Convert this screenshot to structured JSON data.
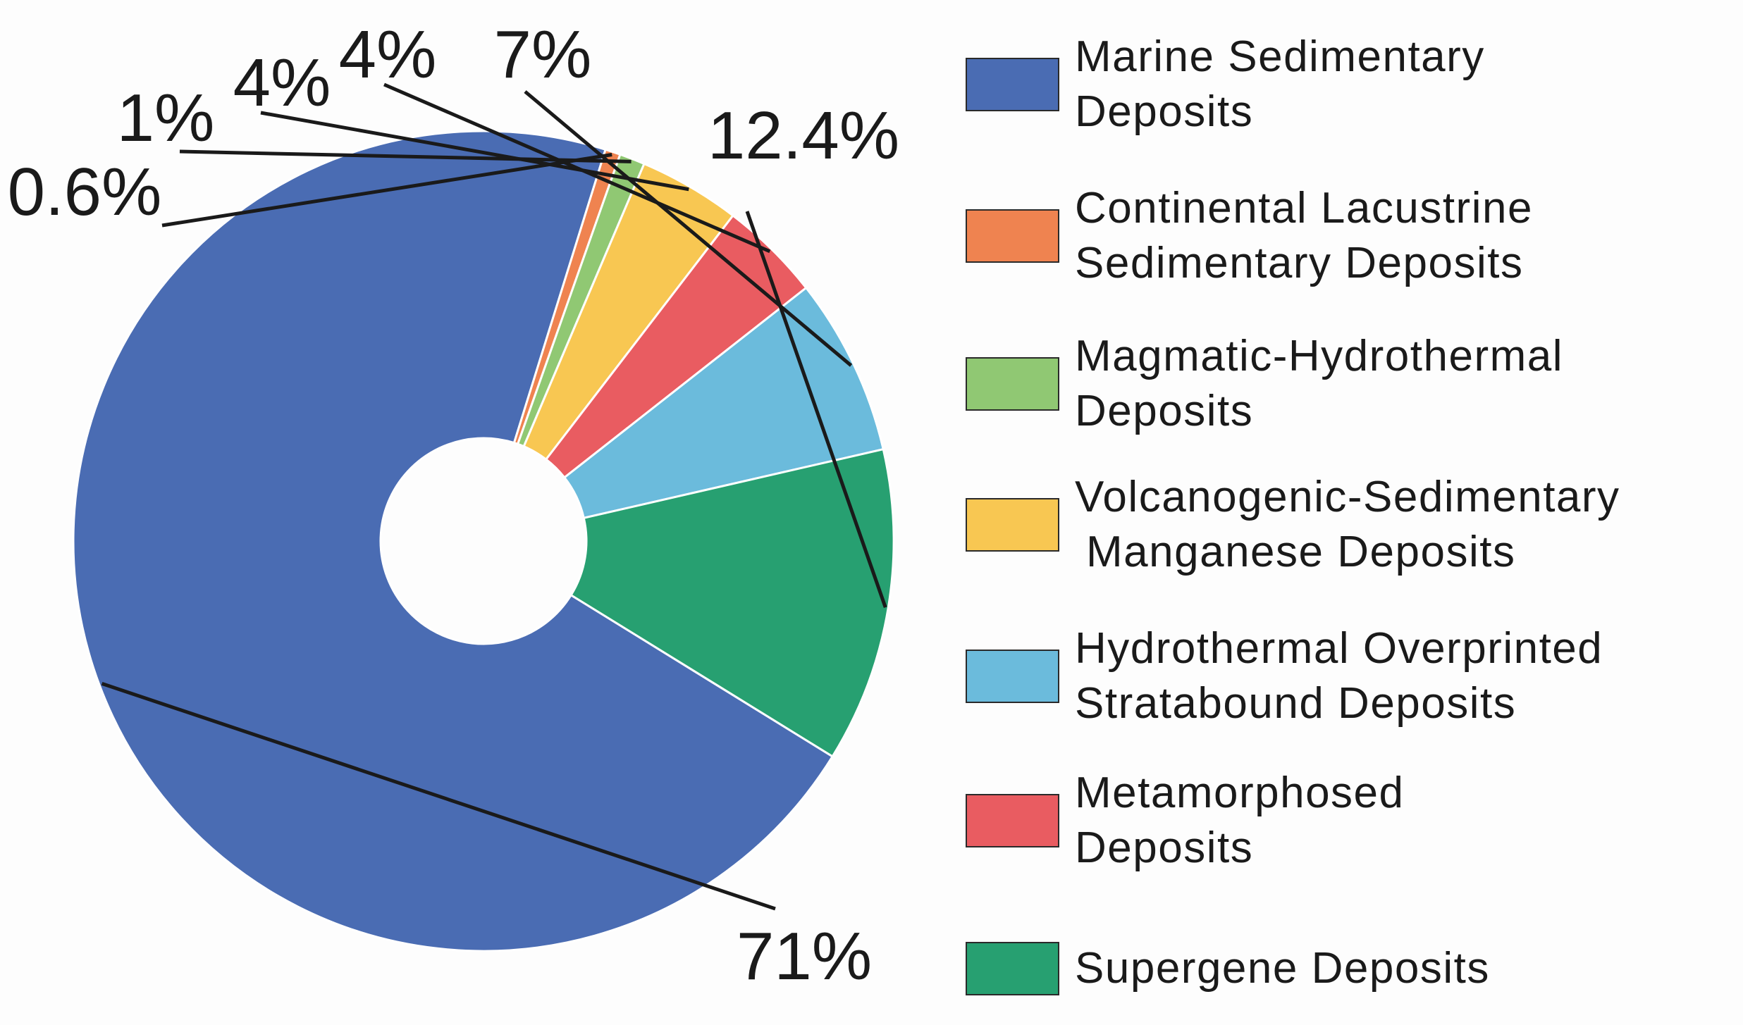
{
  "chart_data": {
    "type": "pie",
    "donut": true,
    "title": "",
    "legend_position": "right",
    "slices": [
      {
        "name": "Marine Sedimentary Deposits",
        "value": 71,
        "label": "71%",
        "color": "#4a6cb3"
      },
      {
        "name": "Continental Lacustrine Sedimentary Deposits",
        "value": 0.6,
        "label": "0.6%",
        "color": "#ef8350"
      },
      {
        "name": "Magmatic-Hydrothermal Deposits",
        "value": 1,
        "label": "1%",
        "color": "#90c873"
      },
      {
        "name": "Volcanogenic-Sedimentary Manganese Deposits",
        "value": 4,
        "label": "4%",
        "color": "#f8c752"
      },
      {
        "name": "Metamorphosed Deposits",
        "value": 4,
        "label": "4%",
        "color": "#e95c61"
      },
      {
        "name": "Hydrothermal Overprinted Stratabound Deposits",
        "value": 7,
        "label": "7%",
        "color": "#6bbbdc"
      },
      {
        "name": "Supergene Deposits",
        "value": 12.4,
        "label": "12.4%",
        "color": "#27a071"
      }
    ]
  },
  "legend": [
    {
      "line1": "Marine Sedimentary",
      "line2": "Deposits",
      "color": "#4a6cb3"
    },
    {
      "line1": "Continental Lacustrine",
      "line2": "Sedimentary Deposits",
      "color": "#ef8350"
    },
    {
      "line1": "Magmatic-Hydrothermal",
      "line2": "Deposits",
      "color": "#90c873"
    },
    {
      "line1": "Volcanogenic-Sedimentary",
      "line2": "Manganese Deposits",
      "color": "#f8c752"
    },
    {
      "line1": "Hydrothermal Overprinted",
      "line2": "Stratabound Deposits",
      "color": "#6bbbdc"
    },
    {
      "line1": "Metamorphosed",
      "line2": "Deposits",
      "color": "#e95c61"
    },
    {
      "line1": "Supergene Deposits",
      "line2": "",
      "color": "#27a071"
    }
  ]
}
